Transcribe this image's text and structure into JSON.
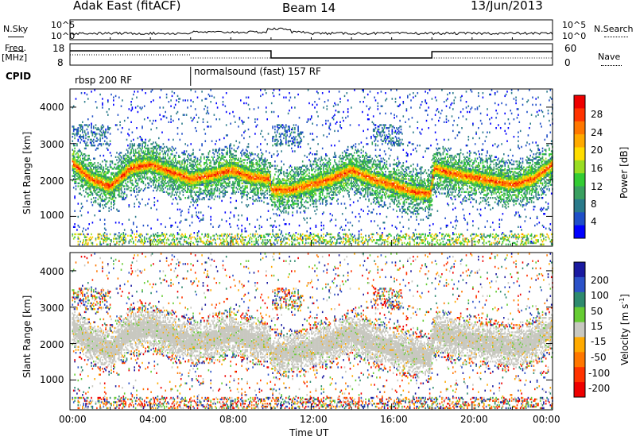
{
  "header": {
    "title": "Adak East (fitACF)",
    "beam": "Beam 14",
    "date": "13/Jun/2013"
  },
  "labels": {
    "nsky": "N.Sky",
    "nsearch": "N.Search",
    "freq": "Freq.",
    "freq_unit": "[MHz]",
    "nave": "Nave",
    "cpid": "CPID",
    "cpid_seg1": "rbsp 200 RF",
    "cpid_seg2": "normalsound (fast) 157 RF"
  },
  "noise_axis": {
    "left_ticks": [
      "10^5",
      "10^0"
    ],
    "right_ticks": [
      "10^5",
      "10^0"
    ]
  },
  "freq_axis": {
    "left_ticks": [
      "18",
      "8"
    ],
    "right_ticks": [
      "60",
      "0"
    ]
  },
  "chart_data": [
    {
      "type": "heatmap",
      "name": "power",
      "ylabel": "Slant Range [km]",
      "y_ticks": [
        "4000",
        "3000",
        "2000",
        "1000"
      ],
      "ylim": [
        180,
        4500
      ],
      "xlim": [
        0,
        24
      ],
      "colorbar": {
        "label": "Power [dB]",
        "ticks": [
          "28",
          "24",
          "20",
          "16",
          "12",
          "8",
          "4"
        ],
        "range": [
          0,
          30
        ],
        "colors": [
          "#0000ff",
          "#1f4fc8",
          "#2a7a8a",
          "#3aa060",
          "#33cc33",
          "#99dd22",
          "#ffdd00",
          "#ffaa00",
          "#ff7700",
          "#ff3300",
          "#ee0000"
        ]
      },
      "band_track": {
        "times": [
          0,
          1,
          2,
          3,
          4,
          5,
          6,
          7,
          8,
          9,
          9.9,
          10,
          11,
          12,
          13,
          14,
          15,
          16,
          17,
          17.9,
          18.1,
          19,
          20,
          21,
          22,
          23,
          24
        ],
        "range_km": [
          2500,
          2000,
          1800,
          2300,
          2400,
          2200,
          2000,
          2100,
          2250,
          2050,
          2000,
          1700,
          1700,
          1850,
          2000,
          2250,
          2000,
          1850,
          1650,
          1600,
          2300,
          2150,
          2050,
          1950,
          1850,
          2000,
          2400
        ]
      }
    },
    {
      "type": "heatmap",
      "name": "velocity",
      "ylabel": "Slant Range [km]",
      "y_ticks": [
        "4000",
        "3000",
        "2000",
        "1000"
      ],
      "ylim": [
        180,
        4500
      ],
      "xlim": [
        0,
        24
      ],
      "x_ticks": [
        "00:00",
        "04:00",
        "08:00",
        "12:00",
        "16:00",
        "20:00",
        "00:00"
      ],
      "xlabel": "Time UT",
      "colorbar": {
        "label": "Velocity [m s",
        "label_sup": "-1",
        "label_close": "]",
        "ticks": [
          "200",
          "100",
          "50",
          "15",
          "-15",
          "-50",
          "-100",
          "-200"
        ],
        "colors": [
          "#1a1aa0",
          "#2c52c8",
          "#2e8a6e",
          "#66cc33",
          "#c8c8c0",
          "#ffaa00",
          "#ff7700",
          "#ff3300",
          "#ee0000"
        ]
      }
    }
  ]
}
